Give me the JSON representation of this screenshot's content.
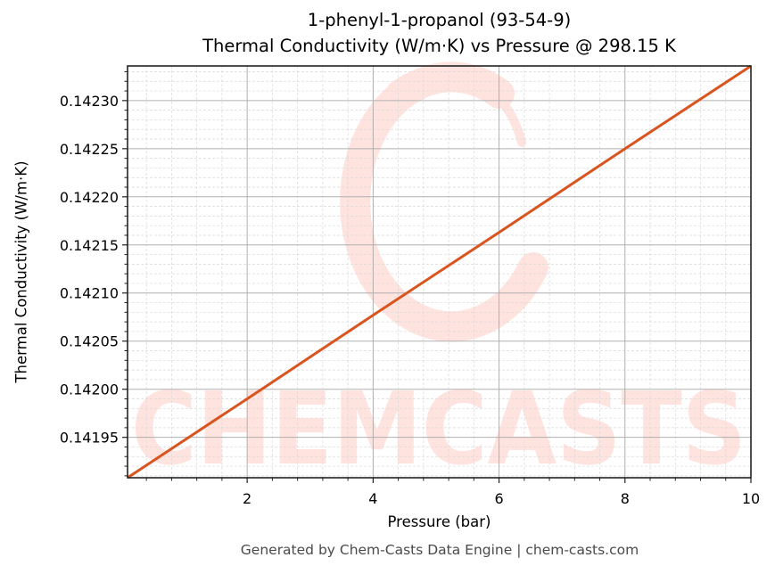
{
  "chart": {
    "title_line1": "1-phenyl-1-propanol (93-54-9)",
    "title_line2": "Thermal Conductivity (W/m·K) vs Pressure @ 298.15 K",
    "xlabel": "Pressure (bar)",
    "ylabel": "Thermal Conductivity (W/m·K)",
    "footer": "Generated by Chem-Casts Data Engine | chem-casts.com",
    "watermark": "CHEMCASTS",
    "line_color": "#d9541e",
    "watermark_color": "#ffe3df"
  },
  "chart_data": {
    "type": "line",
    "title": "1-phenyl-1-propanol (93-54-9) Thermal Conductivity (W/m·K) vs Pressure @ 298.15 K",
    "xlabel": "Pressure (bar)",
    "ylabel": "Thermal Conductivity (W/m·K)",
    "xlim": [
      0.1,
      10
    ],
    "ylim": [
      0.141908,
      0.142336
    ],
    "x_ticks": [
      2,
      4,
      6,
      8,
      10
    ],
    "x_tick_labels": [
      "2",
      "4",
      "6",
      "8",
      "10"
    ],
    "y_ticks": [
      0.14195,
      0.142,
      0.14205,
      0.1421,
      0.14215,
      0.1422,
      0.14225,
      0.1423
    ],
    "y_tick_labels": [
      "0.14195",
      "0.14200",
      "0.14205",
      "0.14210",
      "0.14215",
      "0.14220",
      "0.14225",
      "0.14230"
    ],
    "grid": true,
    "minor_grid": true,
    "legend": null,
    "series": [
      {
        "name": "Thermal Conductivity",
        "color": "#d9541e",
        "x": [
          0.1,
          2,
          4,
          6,
          8,
          10
        ],
        "y": [
          0.141908,
          0.14199,
          0.142077,
          0.142163,
          0.14225,
          0.142336
        ]
      }
    ]
  }
}
